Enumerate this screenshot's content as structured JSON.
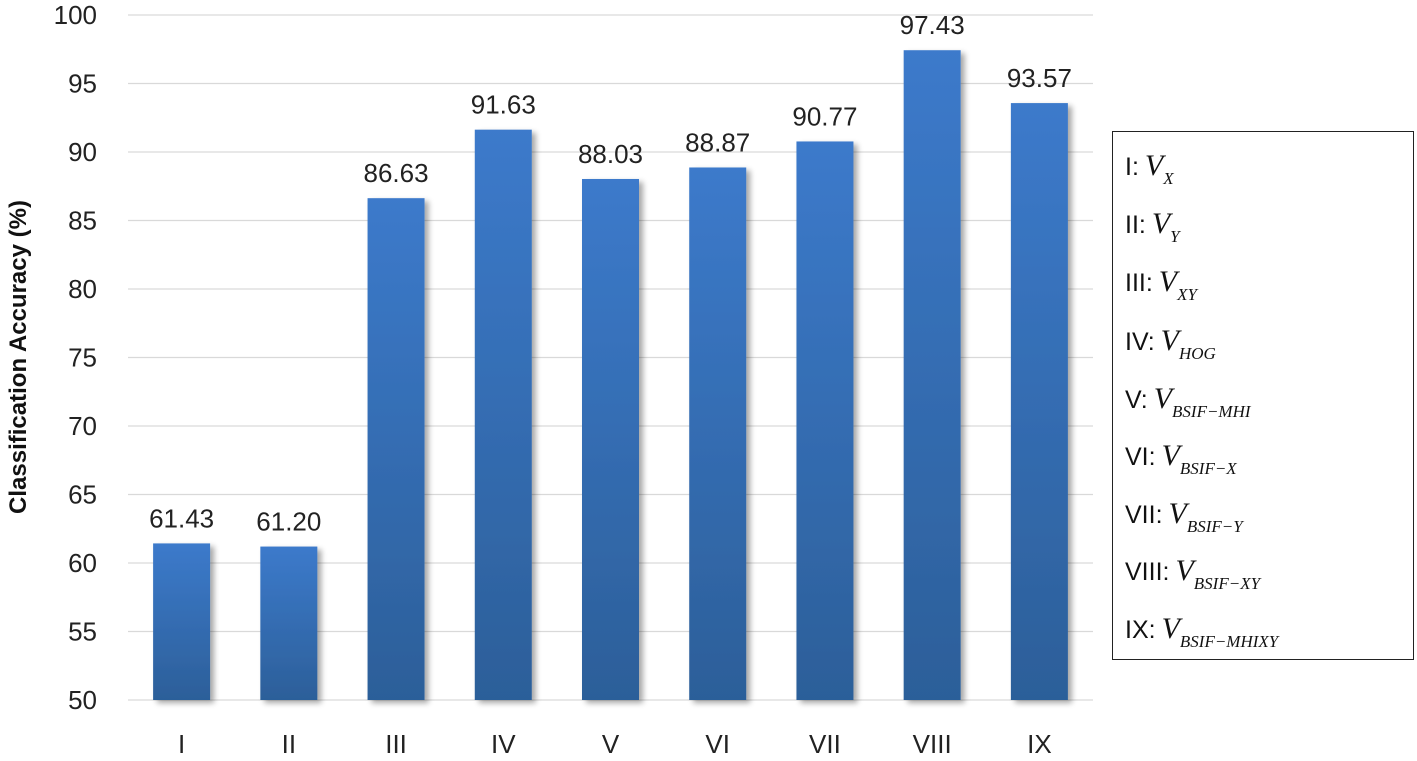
{
  "chart_data": {
    "type": "bar",
    "categories": [
      "I",
      "II",
      "III",
      "IV",
      "V",
      "VI",
      "VII",
      "VIII",
      "IX"
    ],
    "values": [
      61.43,
      61.2,
      86.63,
      91.63,
      88.03,
      88.87,
      90.77,
      97.43,
      93.57
    ],
    "data_labels": [
      "61.43",
      "61.20",
      "86.63",
      "91.63",
      "88.03",
      "88.87",
      "90.77",
      "97.43",
      "93.57"
    ],
    "ylabel": "Classification Accuracy (%)",
    "xlabel": "",
    "ylim": [
      50,
      100
    ],
    "yticks": [
      50,
      55,
      60,
      65,
      70,
      75,
      80,
      85,
      90,
      95,
      100
    ],
    "grid": true,
    "bar_color": "#3a75c4",
    "legend": {
      "placement": "right",
      "items": [
        {
          "key": "I:",
          "symbol": "V",
          "subscript": "X"
        },
        {
          "key": "II:",
          "symbol": "V",
          "subscript": "Y"
        },
        {
          "key": "III:",
          "symbol": "V",
          "subscript": "XY"
        },
        {
          "key": "IV:",
          "symbol": "V",
          "subscript": "HOG"
        },
        {
          "key": "V:",
          "symbol": "V",
          "subscript": "BSIF−MHI"
        },
        {
          "key": "VI:",
          "symbol": "V",
          "subscript": "BSIF−X"
        },
        {
          "key": "VII:",
          "symbol": "V",
          "subscript": "BSIF−Y"
        },
        {
          "key": "VIII:",
          "symbol": "V",
          "subscript": "BSIF−XY"
        },
        {
          "key": "IX:",
          "symbol": "V",
          "subscript": "BSIF−MHIXY"
        }
      ]
    }
  }
}
